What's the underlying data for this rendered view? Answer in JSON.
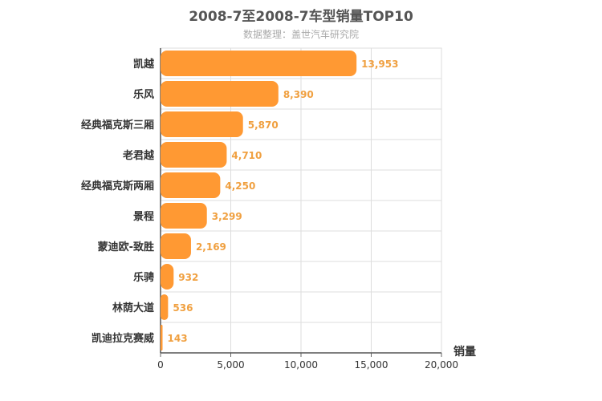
{
  "chart_data": {
    "type": "bar",
    "orientation": "horizontal",
    "title": "2008-7至2008-7车型销量TOP10",
    "subtitle": "数据整理：盖世汽车研究院",
    "categories": [
      "凯越",
      "乐风",
      "经典福克斯三厢",
      "老君越",
      "经典福克斯两厢",
      "景程",
      "蒙迪欧-致胜",
      "乐骋",
      "林荫大道",
      "凯迪拉克赛威"
    ],
    "values": [
      13953,
      8390,
      5870,
      4710,
      4250,
      3299,
      2169,
      932,
      536,
      143
    ],
    "value_labels": [
      "13,953",
      "8,390",
      "5,870",
      "4,710",
      "4,250",
      "3,299",
      "2,169",
      "932",
      "536",
      "143"
    ],
    "xlabel": "销量",
    "xlim": [
      0,
      20000
    ],
    "ticks": [
      0,
      5000,
      10000,
      15000,
      20000
    ],
    "tick_labels": [
      "0",
      "5,000",
      "10,000",
      "15,000",
      "20,000"
    ],
    "bar_color": "#ff9933",
    "label_color": "#f0a040",
    "grid": true
  }
}
